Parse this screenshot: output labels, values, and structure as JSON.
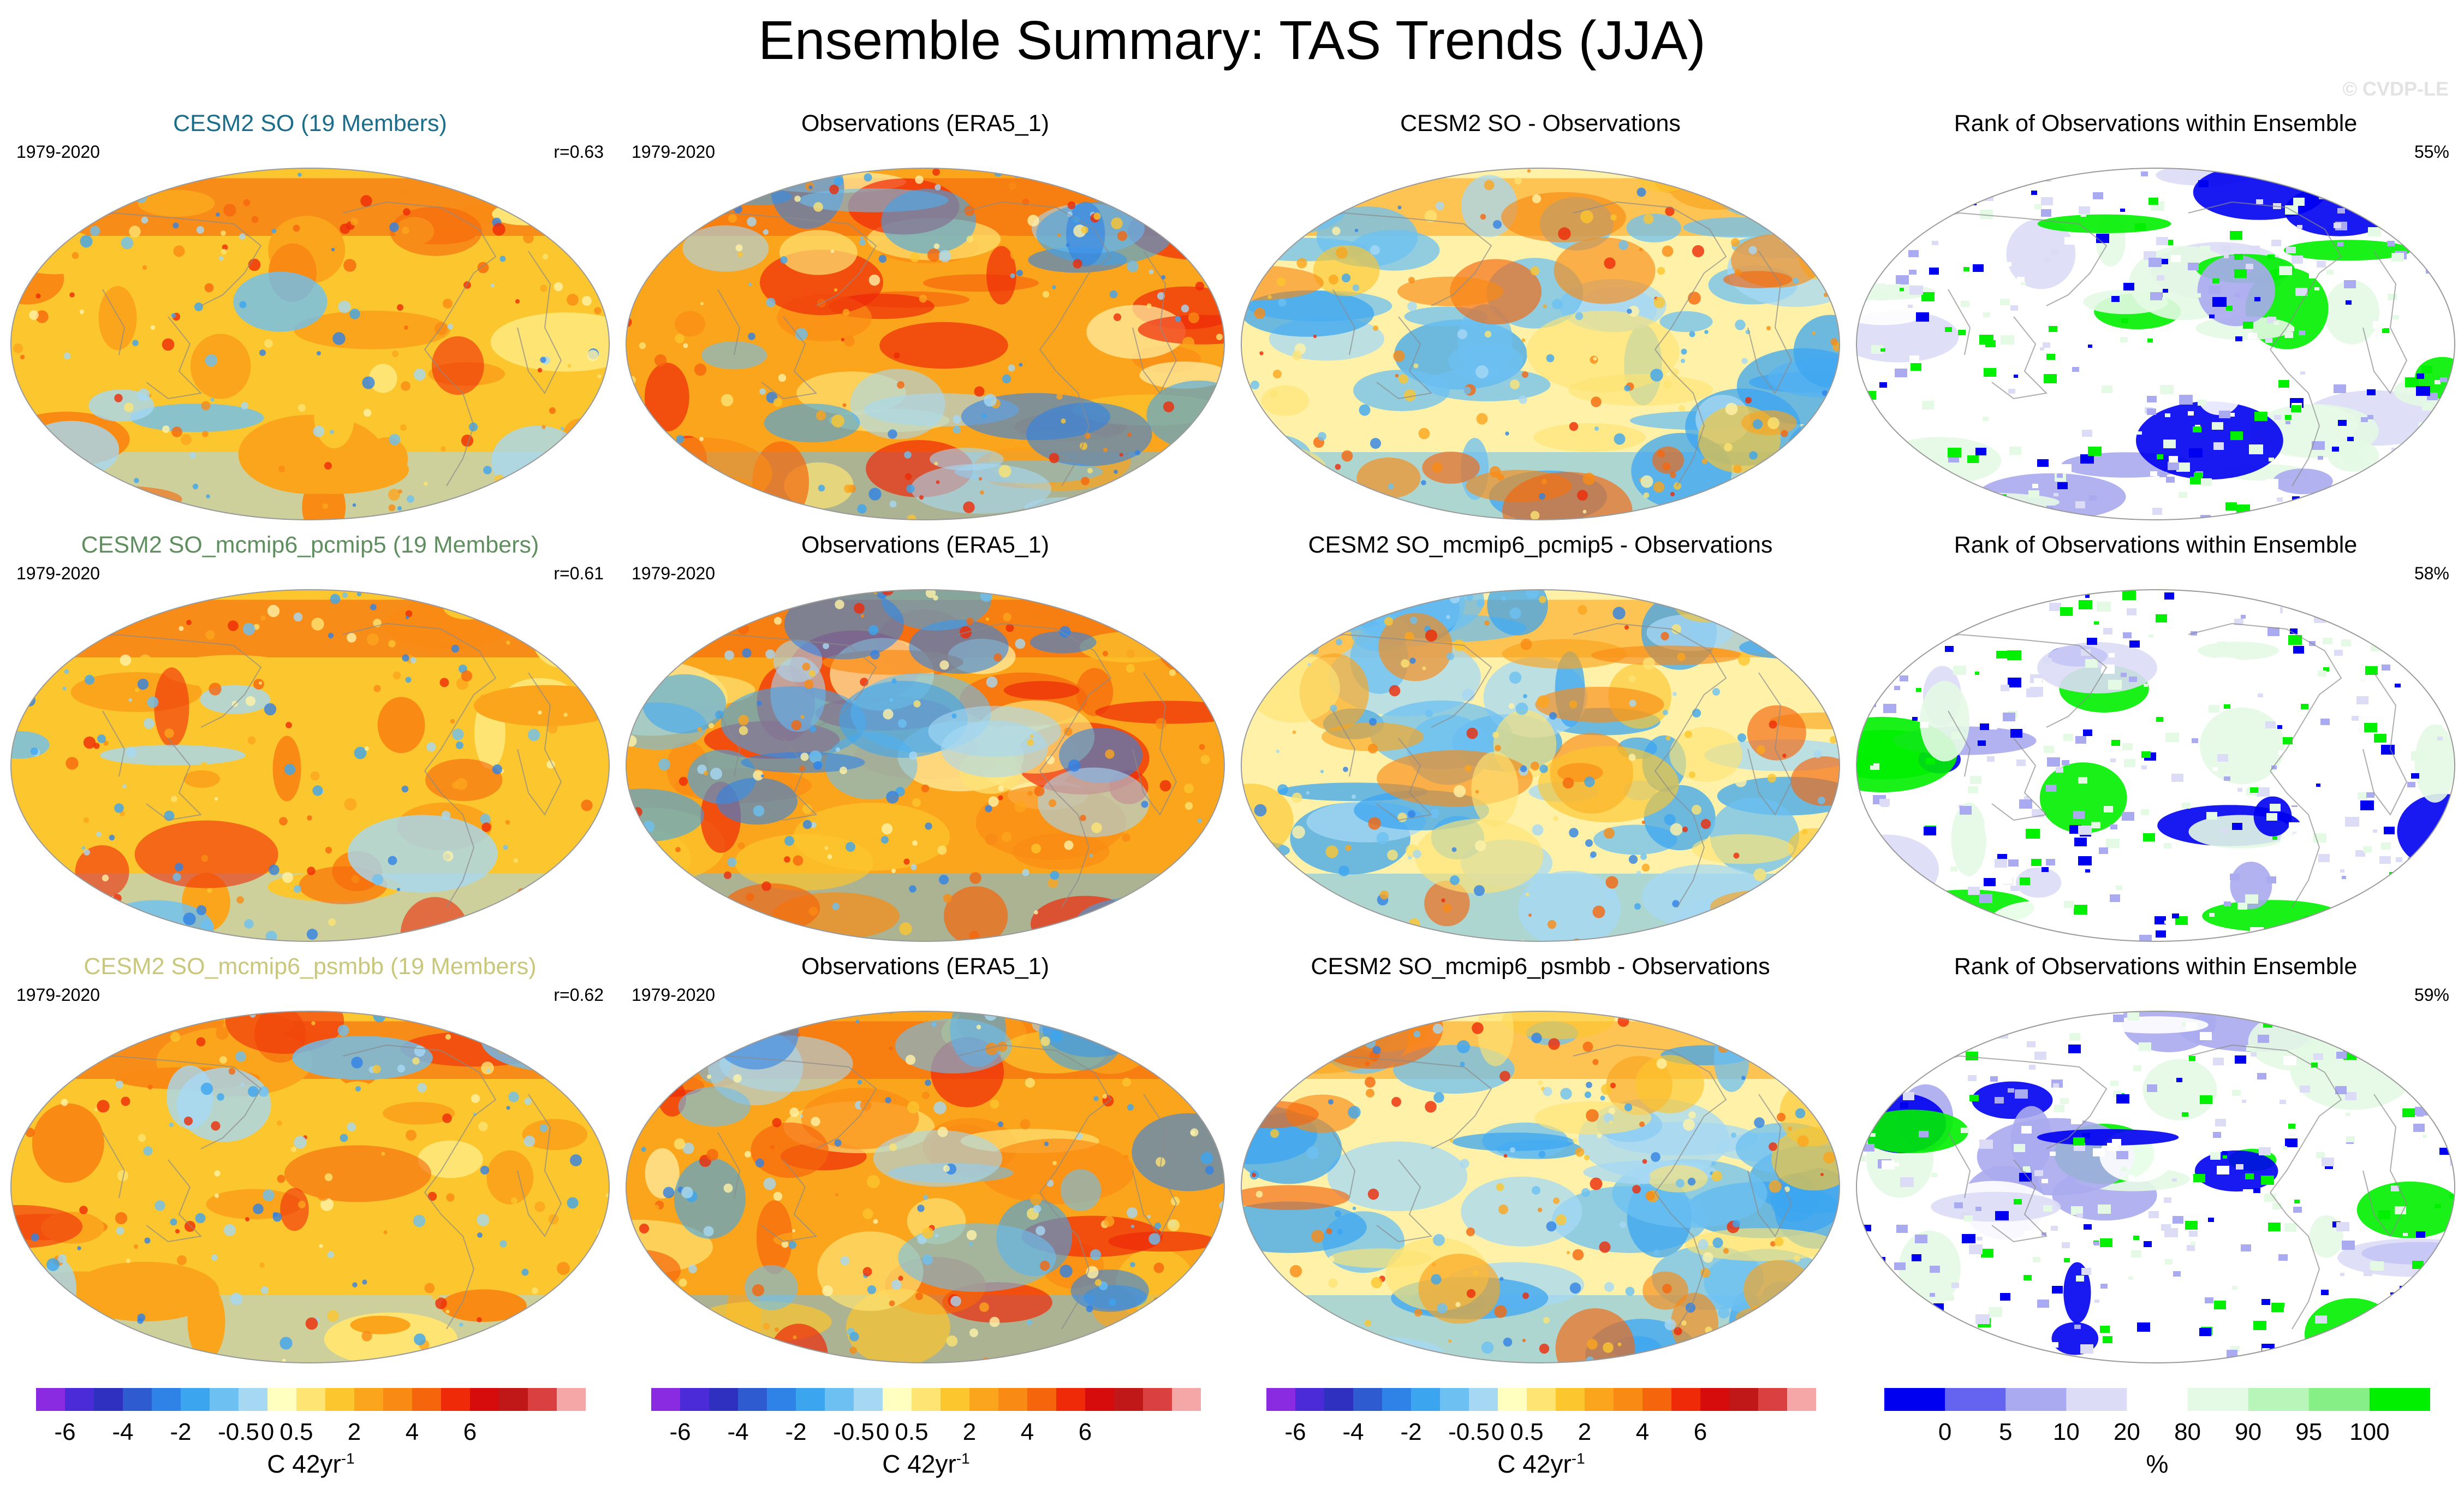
{
  "page": {
    "title": "Ensemble Summary: TAS Trends (JJA)",
    "watermark": "© CVDP-LE"
  },
  "chart_data": [
    {
      "type": "heatmap",
      "row": 1,
      "col": 1,
      "kind": "model",
      "title": "CESM2 SO (19 Members)",
      "title_color": "#1a6e8c",
      "period": "1979-2020",
      "stat": "r=0.63",
      "variable": "TAS trend",
      "season": "JJA"
    },
    {
      "type": "heatmap",
      "row": 1,
      "col": 2,
      "kind": "obs",
      "title": "Observations (ERA5_1)",
      "title_color": "#000000",
      "period": "1979-2020",
      "stat": "",
      "variable": "TAS trend",
      "season": "JJA"
    },
    {
      "type": "heatmap",
      "row": 1,
      "col": 3,
      "kind": "diff",
      "title": "CESM2 SO - Observations",
      "title_color": "#000000",
      "period": "",
      "stat": "",
      "variable": "TAS trend difference",
      "season": "JJA"
    },
    {
      "type": "heatmap",
      "row": 1,
      "col": 4,
      "kind": "rank",
      "title": "Rank of Observations within Ensemble",
      "title_color": "#000000",
      "period": "",
      "stat": "55%",
      "variable": "rank",
      "season": "JJA"
    },
    {
      "type": "heatmap",
      "row": 2,
      "col": 1,
      "kind": "model",
      "title": "CESM2 SO_mcmip6_pcmip5 (19 Members)",
      "title_color": "#5f8f5f",
      "period": "1979-2020",
      "stat": "r=0.61",
      "variable": "TAS trend",
      "season": "JJA"
    },
    {
      "type": "heatmap",
      "row": 2,
      "col": 2,
      "kind": "obs",
      "title": "Observations (ERA5_1)",
      "title_color": "#000000",
      "period": "1979-2020",
      "stat": "",
      "variable": "TAS trend",
      "season": "JJA"
    },
    {
      "type": "heatmap",
      "row": 2,
      "col": 3,
      "kind": "diff",
      "title": "CESM2 SO_mcmip6_pcmip5 - Observations",
      "title_color": "#000000",
      "period": "",
      "stat": "",
      "variable": "TAS trend difference",
      "season": "JJA"
    },
    {
      "type": "heatmap",
      "row": 2,
      "col": 4,
      "kind": "rank",
      "title": "Rank of Observations within Ensemble",
      "title_color": "#000000",
      "period": "",
      "stat": "58%",
      "variable": "rank",
      "season": "JJA"
    },
    {
      "type": "heatmap",
      "row": 3,
      "col": 1,
      "kind": "model",
      "title": "CESM2 SO_mcmip6_psmbb (19 Members)",
      "title_color": "#c9c77a",
      "period": "1979-2020",
      "stat": "r=0.62",
      "variable": "TAS trend",
      "season": "JJA"
    },
    {
      "type": "heatmap",
      "row": 3,
      "col": 2,
      "kind": "obs",
      "title": "Observations (ERA5_1)",
      "title_color": "#000000",
      "period": "1979-2020",
      "stat": "",
      "variable": "TAS trend",
      "season": "JJA"
    },
    {
      "type": "heatmap",
      "row": 3,
      "col": 3,
      "kind": "diff",
      "title": "CESM2 SO_mcmip6_psmbb - Observations",
      "title_color": "#000000",
      "period": "",
      "stat": "",
      "variable": "TAS trend difference",
      "season": "JJA"
    },
    {
      "type": "heatmap",
      "row": 3,
      "col": 4,
      "kind": "rank",
      "title": "Rank of Observations within Ensemble",
      "title_color": "#000000",
      "period": "",
      "stat": "59%",
      "variable": "rank",
      "season": "JJA"
    }
  ],
  "colorbars": [
    {
      "name": "trend",
      "col": 1,
      "unit_base": "C 42yr",
      "unit_sup": "-1",
      "colors": [
        "#8a2be2",
        "#4b2bd8",
        "#3030c0",
        "#2e5bd0",
        "#2f82e6",
        "#3ca5f0",
        "#6cc0f2",
        "#a6d8f4",
        "#ffffc0",
        "#fde473",
        "#fcc62e",
        "#fba51d",
        "#f98b14",
        "#f5660c",
        "#ee2a08",
        "#d60c0c",
        "#c01818",
        "#da4040",
        "#f5a6a6"
      ],
      "ticks": [
        "-6",
        "-4",
        "-2",
        "-0.5",
        "0",
        "0.5",
        "2",
        "4",
        "6"
      ],
      "tick_boundaries": [
        1,
        3,
        5,
        7,
        8,
        9,
        11,
        13,
        15
      ]
    },
    {
      "name": "trend",
      "col": 2,
      "unit_base": "C 42yr",
      "unit_sup": "-1",
      "colors": [
        "#8a2be2",
        "#4b2bd8",
        "#3030c0",
        "#2e5bd0",
        "#2f82e6",
        "#3ca5f0",
        "#6cc0f2",
        "#a6d8f4",
        "#ffffc0",
        "#fde473",
        "#fcc62e",
        "#fba51d",
        "#f98b14",
        "#f5660c",
        "#ee2a08",
        "#d60c0c",
        "#c01818",
        "#da4040",
        "#f5a6a6"
      ],
      "ticks": [
        "-6",
        "-4",
        "-2",
        "-0.5",
        "0",
        "0.5",
        "2",
        "4",
        "6"
      ],
      "tick_boundaries": [
        1,
        3,
        5,
        7,
        8,
        9,
        11,
        13,
        15
      ]
    },
    {
      "name": "diff",
      "col": 3,
      "unit_base": "C 42yr",
      "unit_sup": "-1",
      "colors": [
        "#8a2be2",
        "#4b2bd8",
        "#3030c0",
        "#2e5bd0",
        "#2f82e6",
        "#3ca5f0",
        "#6cc0f2",
        "#a6d8f4",
        "#ffffc0",
        "#fde473",
        "#fcc62e",
        "#fba51d",
        "#f98b14",
        "#f5660c",
        "#ee2a08",
        "#d60c0c",
        "#c01818",
        "#da4040",
        "#f5a6a6"
      ],
      "ticks": [
        "-6",
        "-4",
        "-2",
        "-0.5",
        "0",
        "0.5",
        "2",
        "4",
        "6"
      ],
      "tick_boundaries": [
        1,
        3,
        5,
        7,
        8,
        9,
        11,
        13,
        15
      ]
    },
    {
      "name": "rank",
      "col": 4,
      "unit_base": "%",
      "unit_sup": "",
      "colors": [
        "#0000f0",
        "#6464f0",
        "#aaaaf0",
        "#dcdcf6",
        "#ffffff",
        "#e4fae4",
        "#b8f5b8",
        "#86f086",
        "#00f000"
      ],
      "ticks": [
        "0",
        "5",
        "10",
        "20",
        "80",
        "90",
        "95",
        "100"
      ],
      "tick_boundaries": [
        1,
        2,
        3,
        4,
        5,
        6,
        7,
        8
      ]
    }
  ],
  "palettes": {
    "warm": [
      "#fff2a8",
      "#fde473",
      "#fcc62e",
      "#fba51d",
      "#f98b14",
      "#f5660c",
      "#ee2a08"
    ],
    "cool": [
      "#a6d8f4",
      "#6cc0f2",
      "#3ca5f0",
      "#2f82e6"
    ],
    "rank": [
      "#0000f0",
      "#aaaaf0",
      "#dcdcf6",
      "#ffffff",
      "#e4fae4",
      "#00f000"
    ]
  }
}
